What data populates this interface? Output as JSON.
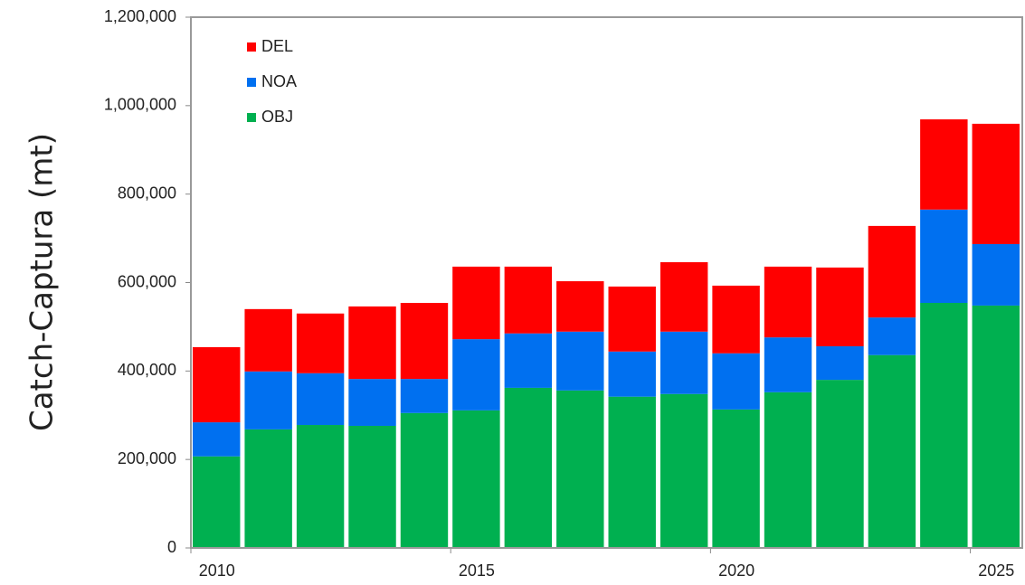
{
  "chart_data": {
    "type": "stacked_bar",
    "ylabel": "Catch-Captura (mt)",
    "categories": [
      "2010",
      null,
      null,
      null,
      null,
      "2015",
      null,
      null,
      null,
      null,
      "2020",
      null,
      null,
      null,
      null,
      "2025"
    ],
    "series": [
      {
        "name": "OBJ",
        "color": "#00b050",
        "values": [
          207000,
          268000,
          278000,
          276000,
          305000,
          311000,
          362000,
          356000,
          342000,
          348000,
          313000,
          352000,
          380000,
          436000,
          554000,
          548000
        ]
      },
      {
        "name": "NOA",
        "color": "#0070f0",
        "values": [
          77000,
          131000,
          117000,
          106000,
          77000,
          161000,
          123000,
          133000,
          102000,
          141000,
          127000,
          124000,
          76000,
          85000,
          211000,
          139000
        ]
      },
      {
        "name": "DEL",
        "color": "#ff0000",
        "values": [
          170000,
          141000,
          135000,
          164000,
          172000,
          164000,
          151000,
          114000,
          147000,
          157000,
          153000,
          160000,
          178000,
          207000,
          204000,
          272000
        ]
      }
    ],
    "ylim": [
      0,
      1200000
    ],
    "yticks": [
      0,
      {
        "value": 200000,
        "label": "200,000"
      },
      {
        "value": 400000,
        "label": "400,000"
      },
      {
        "value": 600000,
        "label": "600,000"
      },
      {
        "value": 800000,
        "label": "800,000"
      },
      {
        "value": 1000000,
        "label": "1,000,000"
      },
      {
        "value": 1200000,
        "label": "1,200,000"
      }
    ],
    "legend": "upper left"
  }
}
